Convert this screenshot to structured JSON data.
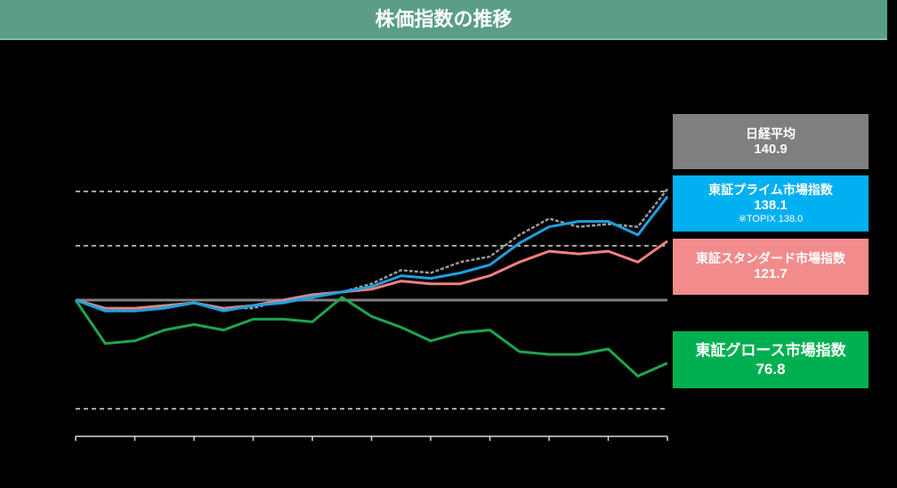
{
  "header": {
    "title": "株価指数の推移"
  },
  "labels": {
    "nikkei": {
      "name": "日経平均",
      "value": "140.9",
      "color": "#7f7f7f"
    },
    "prime": {
      "name": "東証プライム市場指数",
      "value": "138.1",
      "note": "※TOPIX 138.0",
      "color": "#00b0f0"
    },
    "standard": {
      "name": "東証スタンダード市場指数",
      "value": "121.7",
      "color": "#f28c8c"
    },
    "growth": {
      "name": "東証グロース市場指数",
      "value": "76.8",
      "color": "#00b050"
    }
  },
  "chart_data": {
    "type": "line",
    "title": "株価指数の推移",
    "ylim": [
      50,
      150
    ],
    "gridlines": [
      60,
      100,
      120,
      140
    ],
    "baseline": 100,
    "grid": "dashed horizontal",
    "x": [
      0,
      5,
      10,
      15,
      20,
      25,
      30,
      35,
      40,
      45,
      50,
      55,
      60,
      65,
      70,
      75,
      80,
      85,
      90,
      95,
      100
    ],
    "series": [
      {
        "name": "日経平均",
        "color": "#9a9a9a",
        "values": [
          100,
          97,
          96,
          98,
          99,
          97,
          97,
          100,
          102,
          103,
          106,
          111,
          110,
          114,
          116,
          124,
          130,
          127,
          128,
          127,
          140.9
        ]
      },
      {
        "name": "東証プライム市場指数",
        "color": "#1ea0e0",
        "values": [
          100,
          96,
          96,
          97,
          99,
          96,
          98,
          99,
          101,
          103,
          105,
          109,
          108,
          110,
          113,
          121,
          127,
          129,
          129,
          124,
          138.1
        ]
      },
      {
        "name": "東証スタンダード市場指数",
        "color": "#f08080",
        "values": [
          100,
          97,
          97,
          98,
          99,
          97,
          98,
          100,
          102,
          103,
          104,
          107,
          106,
          106,
          109,
          114,
          118,
          117,
          118,
          114,
          121.7
        ]
      },
      {
        "name": "東証グロース市場指数",
        "color": "#1fa54f",
        "values": [
          100,
          84,
          85,
          89,
          91,
          89,
          93,
          93,
          92,
          101,
          94,
          90,
          85,
          88,
          89,
          81,
          80,
          80,
          82,
          72,
          76.8
        ]
      }
    ]
  }
}
